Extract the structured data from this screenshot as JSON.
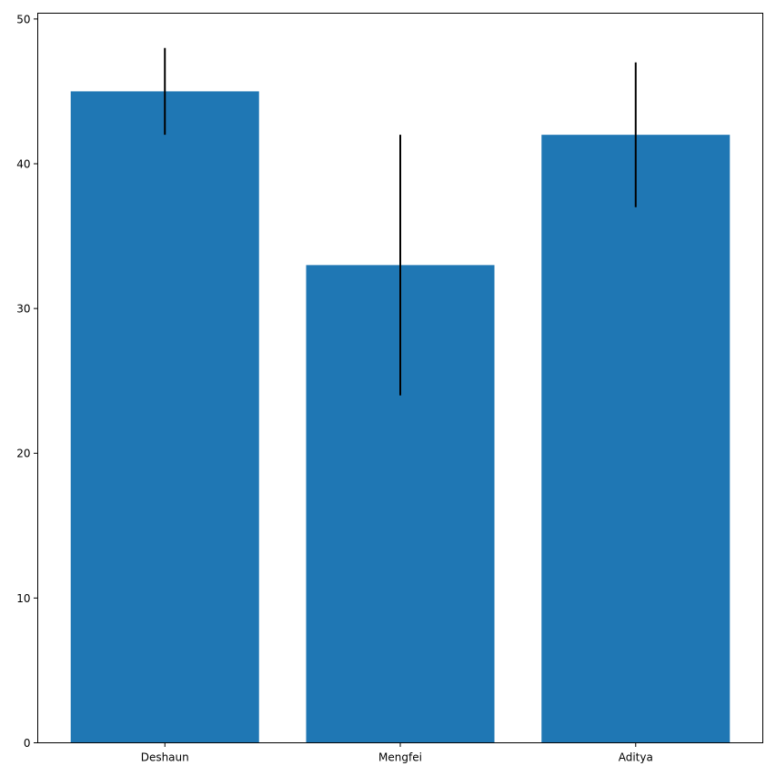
{
  "chart_data": {
    "type": "bar",
    "categories": [
      "Deshaun",
      "Mengfei",
      "Aditya"
    ],
    "values": [
      45,
      33,
      42
    ],
    "errors": [
      3,
      9,
      5
    ],
    "title": "",
    "xlabel": "",
    "ylabel": "",
    "ylim": [
      0,
      50.4
    ],
    "yticks": [
      0,
      10,
      20,
      30,
      40,
      50
    ],
    "grid": false,
    "bar_color": "#1f77b4",
    "error_color": "#000000"
  }
}
